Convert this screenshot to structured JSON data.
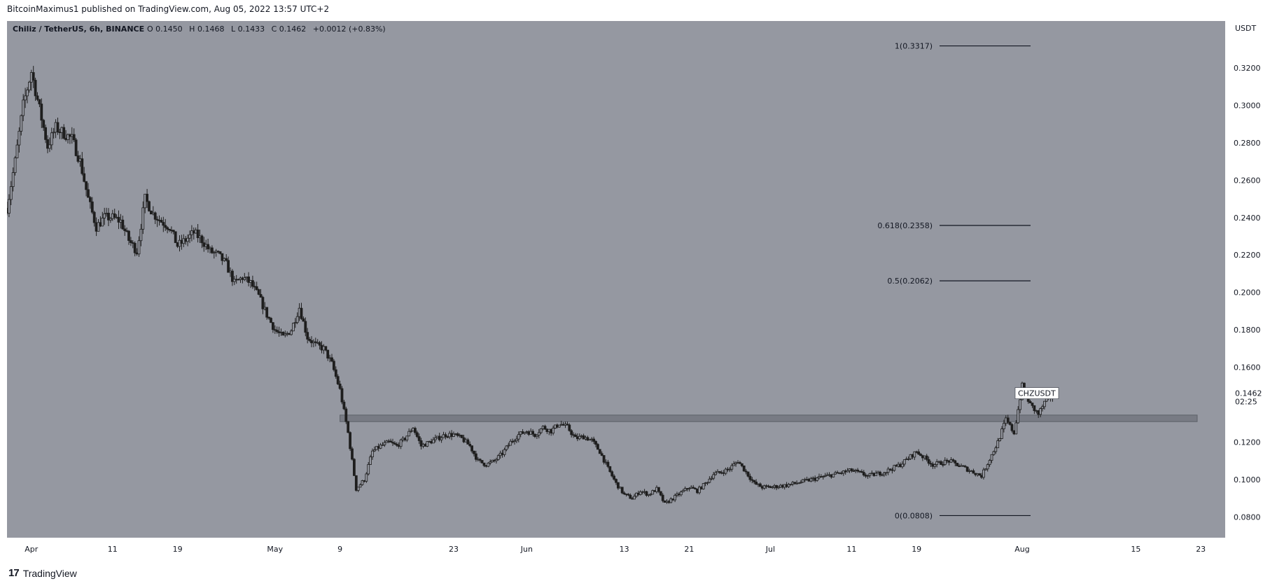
{
  "header": {
    "published_text": "BitcoinMaximus1 published on TradingView.com, Aug 05, 2022 13:57 UTC+2"
  },
  "footer": {
    "brand": "TradingView",
    "logo_glyph": "17"
  },
  "colors": {
    "plot_bg": "#9598a1",
    "candle": "#1e1e1e",
    "zone": "#6f727b",
    "fib_line": "#131722",
    "text": "#131722"
  },
  "chart_data": {
    "type": "candlestick",
    "symbol_line": {
      "name": "Chiliz / TetherUS, 6h, BINANCE",
      "o_label": "O",
      "o_value": "0.1450",
      "h_label": "H",
      "h_value": "0.1468",
      "l_label": "L",
      "l_value": "0.1433",
      "c_label": "C",
      "c_value": "0.1462",
      "change": "+0.0012 (+0.83%)"
    },
    "currency": "USDT",
    "ylim": [
      0.069,
      0.345
    ],
    "y_ticks": [
      "0.3200",
      "0.3000",
      "0.2800",
      "0.2600",
      "0.2400",
      "0.2200",
      "0.2000",
      "0.1800",
      "0.1600",
      "0.1200",
      "0.1000",
      "0.0800"
    ],
    "x_ticks": [
      {
        "label": "Apr",
        "date": "2022-04-01"
      },
      {
        "label": "11",
        "date": "2022-04-11"
      },
      {
        "label": "19",
        "date": "2022-04-19"
      },
      {
        "label": "May",
        "date": "2022-05-01"
      },
      {
        "label": "9",
        "date": "2022-05-09"
      },
      {
        "label": "23",
        "date": "2022-05-23"
      },
      {
        "label": "Jun",
        "date": "2022-06-01"
      },
      {
        "label": "13",
        "date": "2022-06-13"
      },
      {
        "label": "21",
        "date": "2022-06-21"
      },
      {
        "label": "Jul",
        "date": "2022-07-01"
      },
      {
        "label": "11",
        "date": "2022-07-11"
      },
      {
        "label": "19",
        "date": "2022-07-19"
      },
      {
        "label": "Aug",
        "date": "2022-08-01"
      },
      {
        "label": "15",
        "date": "2022-08-15"
      },
      {
        "label": "23",
        "date": "2022-08-23"
      }
    ],
    "x_range": [
      "2022-03-29",
      "2022-08-26"
    ],
    "price_path": [
      [
        "2022-03-29",
        0.245
      ],
      [
        "2022-03-30",
        0.27
      ],
      [
        "2022-03-31",
        0.3
      ],
      [
        "2022-04-01",
        0.318
      ],
      [
        "2022-04-02",
        0.298
      ],
      [
        "2022-04-03",
        0.278
      ],
      [
        "2022-04-04",
        0.288
      ],
      [
        "2022-04-05",
        0.285
      ],
      [
        "2022-04-06",
        0.282
      ],
      [
        "2022-04-07",
        0.27
      ],
      [
        "2022-04-08",
        0.25
      ],
      [
        "2022-04-09",
        0.235
      ],
      [
        "2022-04-10",
        0.24
      ],
      [
        "2022-04-11",
        0.24
      ],
      [
        "2022-04-12",
        0.238
      ],
      [
        "2022-04-13",
        0.228
      ],
      [
        "2022-04-14",
        0.222
      ],
      [
        "2022-04-15",
        0.25
      ],
      [
        "2022-04-16",
        0.242
      ],
      [
        "2022-04-17",
        0.238
      ],
      [
        "2022-04-18",
        0.235
      ],
      [
        "2022-04-19",
        0.225
      ],
      [
        "2022-04-20",
        0.228
      ],
      [
        "2022-04-21",
        0.232
      ],
      [
        "2022-04-22",
        0.228
      ],
      [
        "2022-04-23",
        0.222
      ],
      [
        "2022-04-24",
        0.22
      ],
      [
        "2022-04-25",
        0.215
      ],
      [
        "2022-04-26",
        0.205
      ],
      [
        "2022-04-27",
        0.208
      ],
      [
        "2022-04-28",
        0.205
      ],
      [
        "2022-04-29",
        0.198
      ],
      [
        "2022-04-30",
        0.188
      ],
      [
        "2022-05-01",
        0.18
      ],
      [
        "2022-05-02",
        0.176
      ],
      [
        "2022-05-03",
        0.18
      ],
      [
        "2022-05-04",
        0.192
      ],
      [
        "2022-05-05",
        0.176
      ],
      [
        "2022-05-06",
        0.172
      ],
      [
        "2022-05-07",
        0.17
      ],
      [
        "2022-05-08",
        0.162
      ],
      [
        "2022-05-09",
        0.148
      ],
      [
        "2022-05-10",
        0.125
      ],
      [
        "2022-05-11",
        0.095
      ],
      [
        "2022-05-12",
        0.1
      ],
      [
        "2022-05-13",
        0.115
      ],
      [
        "2022-05-14",
        0.118
      ],
      [
        "2022-05-15",
        0.12
      ],
      [
        "2022-05-16",
        0.118
      ],
      [
        "2022-05-17",
        0.122
      ],
      [
        "2022-05-18",
        0.128
      ],
      [
        "2022-05-19",
        0.118
      ],
      [
        "2022-05-20",
        0.12
      ],
      [
        "2022-05-21",
        0.122
      ],
      [
        "2022-05-22",
        0.124
      ],
      [
        "2022-05-23",
        0.124
      ],
      [
        "2022-05-24",
        0.122
      ],
      [
        "2022-05-25",
        0.118
      ],
      [
        "2022-05-26",
        0.11
      ],
      [
        "2022-05-27",
        0.108
      ],
      [
        "2022-05-28",
        0.11
      ],
      [
        "2022-05-29",
        0.114
      ],
      [
        "2022-05-30",
        0.12
      ],
      [
        "2022-05-31",
        0.124
      ],
      [
        "2022-06-01",
        0.126
      ],
      [
        "2022-06-02",
        0.124
      ],
      [
        "2022-06-03",
        0.128
      ],
      [
        "2022-06-04",
        0.126
      ],
      [
        "2022-06-05",
        0.13
      ],
      [
        "2022-06-06",
        0.128
      ],
      [
        "2022-06-07",
        0.122
      ],
      [
        "2022-06-08",
        0.123
      ],
      [
        "2022-06-09",
        0.121
      ],
      [
        "2022-06-10",
        0.115
      ],
      [
        "2022-06-11",
        0.106
      ],
      [
        "2022-06-12",
        0.098
      ],
      [
        "2022-06-13",
        0.092
      ],
      [
        "2022-06-14",
        0.09
      ],
      [
        "2022-06-15",
        0.094
      ],
      [
        "2022-06-16",
        0.092
      ],
      [
        "2022-06-17",
        0.095
      ],
      [
        "2022-06-18",
        0.087
      ],
      [
        "2022-06-19",
        0.09
      ],
      [
        "2022-06-20",
        0.093
      ],
      [
        "2022-06-21",
        0.096
      ],
      [
        "2022-06-22",
        0.094
      ],
      [
        "2022-06-23",
        0.098
      ],
      [
        "2022-06-24",
        0.103
      ],
      [
        "2022-06-25",
        0.104
      ],
      [
        "2022-06-26",
        0.106
      ],
      [
        "2022-06-27",
        0.11
      ],
      [
        "2022-06-28",
        0.104
      ],
      [
        "2022-06-29",
        0.098
      ],
      [
        "2022-06-30",
        0.096
      ],
      [
        "2022-07-01",
        0.096
      ],
      [
        "2022-07-03",
        0.097
      ],
      [
        "2022-07-05",
        0.099
      ],
      [
        "2022-07-07",
        0.101
      ],
      [
        "2022-07-09",
        0.103
      ],
      [
        "2022-07-11",
        0.105
      ],
      [
        "2022-07-13",
        0.102
      ],
      [
        "2022-07-15",
        0.104
      ],
      [
        "2022-07-17",
        0.108
      ],
      [
        "2022-07-19",
        0.115
      ],
      [
        "2022-07-21",
        0.108
      ],
      [
        "2022-07-23",
        0.11
      ],
      [
        "2022-07-25",
        0.106
      ],
      [
        "2022-07-27",
        0.102
      ],
      [
        "2022-07-29",
        0.12
      ],
      [
        "2022-07-30",
        0.132
      ],
      [
        "2022-07-31",
        0.125
      ],
      [
        "2022-08-01",
        0.15
      ],
      [
        "2022-08-02",
        0.14
      ],
      [
        "2022-08-03",
        0.135
      ],
      [
        "2022-08-04",
        0.143
      ],
      [
        "2022-08-05",
        0.146
      ]
    ],
    "resistance_zone": {
      "from": "2022-05-09",
      "to": "2022-08-26",
      "low": 0.131,
      "high": 0.1345
    },
    "fib_levels": [
      {
        "label": "1(0.3317)",
        "value": 0.3317
      },
      {
        "label": "0.618(0.2358)",
        "value": 0.2358
      },
      {
        "label": "0.5(0.2062)",
        "value": 0.2062
      },
      {
        "label": "0(0.0808)",
        "value": 0.0808
      }
    ],
    "last_price": {
      "ticker": "CHZUSDT",
      "value": "0.1462",
      "countdown": "02:25"
    }
  }
}
